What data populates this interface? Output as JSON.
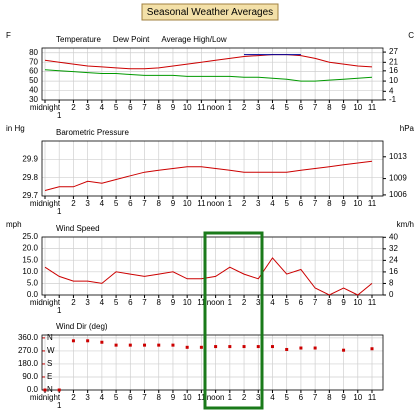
{
  "header": {
    "title": "Seasonal Weather Averages"
  },
  "chart_data": [
    {
      "type": "line",
      "categories": [
        "midnight",
        "1",
        "2",
        "3",
        "4",
        "5",
        "6",
        "7",
        "8",
        "9",
        "10",
        "11",
        "noon",
        "1",
        "2",
        "3",
        "4",
        "5",
        "6",
        "7",
        "8",
        "9",
        "10",
        "11"
      ],
      "series": [
        {
          "name": "Temperature",
          "color": "#cc0000",
          "values": [
            72,
            70,
            68,
            66,
            65,
            64,
            63,
            63,
            64,
            66,
            68,
            70,
            72,
            74,
            76,
            77,
            78,
            78,
            77,
            74,
            70,
            68,
            66,
            65
          ]
        },
        {
          "name": "Dew Point",
          "color": "#009900",
          "values": [
            62,
            61,
            60,
            59,
            58,
            58,
            57,
            56,
            56,
            56,
            55,
            55,
            55,
            55,
            54,
            54,
            53,
            52,
            50,
            50,
            51,
            52,
            53,
            54
          ]
        },
        {
          "name": "Average High/Low",
          "color": "#000099",
          "values": [
            null,
            null,
            null,
            null,
            null,
            null,
            null,
            null,
            null,
            null,
            null,
            null,
            null,
            null,
            78,
            78,
            78,
            78,
            78,
            null,
            null,
            null,
            null,
            null
          ]
        }
      ],
      "y_label": "F",
      "y2_label": "C",
      "ylim": [
        30,
        85
      ],
      "yticks": [
        30,
        40,
        50,
        60,
        70,
        80
      ],
      "y2lim": [
        -1.1,
        29.4
      ],
      "y2ticks": [
        -1,
        4,
        10,
        16,
        21,
        27
      ],
      "grid": true
    },
    {
      "type": "line",
      "title": "Barometric Pressure",
      "categories": [
        "midnight",
        "1",
        "2",
        "3",
        "4",
        "5",
        "6",
        "7",
        "8",
        "9",
        "10",
        "11",
        "noon",
        "1",
        "2",
        "3",
        "4",
        "5",
        "6",
        "7",
        "8",
        "9",
        "10",
        "11"
      ],
      "series": [
        {
          "name": "Barometric Pressure",
          "color": "#cc0000",
          "values": [
            29.73,
            29.75,
            29.75,
            29.78,
            29.77,
            29.79,
            29.81,
            29.83,
            29.84,
            29.85,
            29.86,
            29.86,
            29.85,
            29.84,
            29.83,
            29.83,
            29.83,
            29.83,
            29.84,
            29.85,
            29.86,
            29.87,
            29.88,
            29.89
          ]
        }
      ],
      "y_label": "in Hg",
      "y2_label": "hPa",
      "ylim": [
        29.7,
        30.0
      ],
      "yticks": [
        29.7,
        29.8,
        29.9
      ],
      "y2lim": [
        1005.8,
        1015.9
      ],
      "y2ticks": [
        1006,
        1009,
        1013
      ],
      "grid": true
    },
    {
      "type": "line",
      "title": "Wind Speed",
      "categories": [
        "midnight",
        "1",
        "2",
        "3",
        "4",
        "5",
        "6",
        "7",
        "8",
        "9",
        "10",
        "11",
        "noon",
        "1",
        "2",
        "3",
        "4",
        "5",
        "6",
        "7",
        "8",
        "9",
        "10",
        "11"
      ],
      "series": [
        {
          "name": "Wind Speed",
          "color": "#cc0000",
          "values": [
            12,
            8,
            6,
            6,
            5,
            10,
            9,
            8,
            9,
            10,
            7,
            7,
            8,
            12,
            9,
            7,
            16,
            9,
            11,
            3,
            0,
            3,
            0,
            5
          ]
        }
      ],
      "y_label": "mph",
      "y2_label": "km/h",
      "ylim": [
        0,
        25
      ],
      "yticks": [
        {
          "value": 0,
          "label": "0.0"
        },
        {
          "value": 5,
          "label": "5.0"
        },
        {
          "value": 10,
          "label": "10.0"
        },
        {
          "value": 15,
          "label": "15.0"
        },
        {
          "value": 20,
          "label": "20.0"
        },
        {
          "value": 25,
          "label": "25.0"
        }
      ],
      "y2lim": [
        0,
        40.2
      ],
      "y2ticks": [
        0,
        8,
        16,
        24,
        32,
        40
      ],
      "grid": true
    },
    {
      "type": "scatter",
      "title": "Wind Dir (deg)",
      "categories": [
        "midnight",
        "1",
        "2",
        "3",
        "4",
        "5",
        "6",
        "7",
        "8",
        "9",
        "10",
        "11",
        "noon",
        "1",
        "2",
        "3",
        "4",
        "5",
        "6",
        "7",
        "8",
        "9",
        "10",
        "11"
      ],
      "series": [
        {
          "name": "Wind Dir (deg)",
          "color": "#cc0000",
          "values": [
            0,
            0,
            340,
            340,
            330,
            310,
            310,
            310,
            310,
            310,
            295,
            295,
            300,
            300,
            300,
            300,
            300,
            280,
            290,
            290,
            null,
            275,
            null,
            285
          ]
        }
      ],
      "ylim": [
        0,
        380
      ],
      "yticks": [
        {
          "value": 0,
          "label": "0.0"
        },
        {
          "value": 90,
          "label": "90.0"
        },
        {
          "value": 180,
          "label": "180.0"
        },
        {
          "value": 270,
          "label": "270.0"
        },
        {
          "value": 360,
          "label": "360.0"
        }
      ],
      "compass": [
        {
          "value": 0,
          "label": "N"
        },
        {
          "value": 90,
          "label": "E"
        },
        {
          "value": 180,
          "label": "S"
        },
        {
          "value": 270,
          "label": "W"
        },
        {
          "value": 360,
          "label": "N"
        }
      ],
      "grid": true
    }
  ]
}
